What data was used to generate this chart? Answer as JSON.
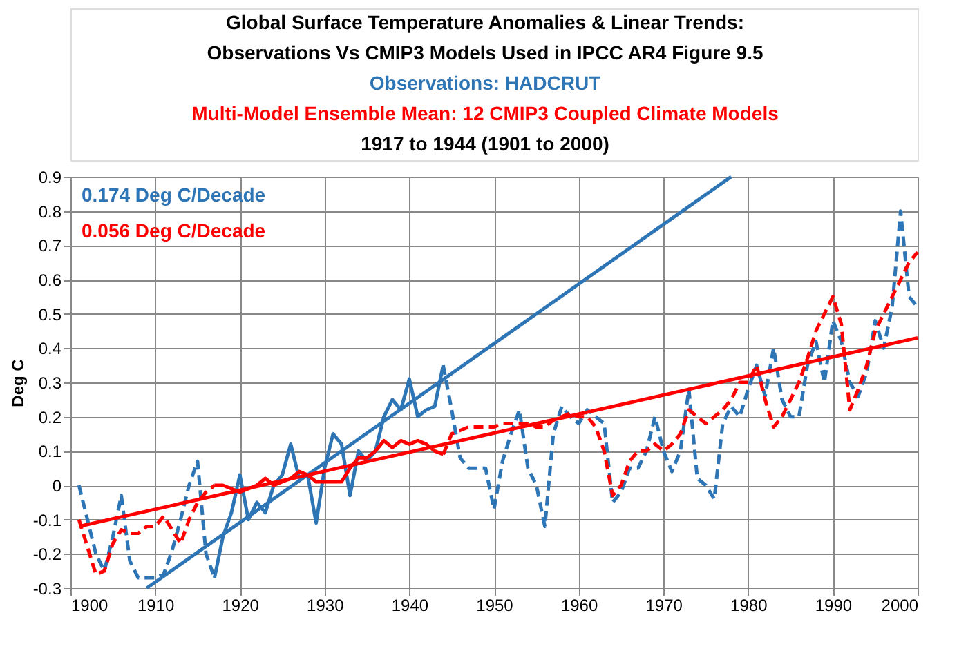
{
  "chart_data": {
    "type": "line",
    "title": [
      "Global Surface Temperature Anomalies & Linear Trends:",
      "Observations Vs CMIP3 Models Used in IPCC AR4 Figure 9.5"
    ],
    "subtitle": [
      "Observations: HADCRUT",
      "Multi-Model Ensemble Mean: 12 CMIP3 Coupled Climate Models",
      "1917 to 1944 (1901 to 2000)"
    ],
    "ylabel": "Deg C",
    "annotations": [
      "0.174 Deg C/Decade",
      "0.056 Deg C/Decade"
    ],
    "series": [
      {
        "type": "line",
        "color": "#2e75b6",
        "line_style": "dashed",
        "x": [
          1901,
          1902,
          1903,
          1904,
          1905,
          1906,
          1907,
          1908,
          1909,
          1910,
          1911,
          1912,
          1913,
          1914,
          1915,
          1916,
          1917
        ],
        "values": [
          0.0,
          -0.1,
          -0.2,
          -0.25,
          -0.15,
          -0.03,
          -0.22,
          -0.27,
          -0.27,
          -0.27,
          -0.26,
          -0.19,
          -0.1,
          0.0,
          0.07,
          -0.2,
          -0.27
        ]
      },
      {
        "type": "line",
        "color": "#2e75b6",
        "line_style": "dashed",
        "x": [
          1944,
          1945,
          1946,
          1947,
          1948,
          1949,
          1950,
          1951,
          1952,
          1953,
          1954,
          1955,
          1956,
          1957,
          1958,
          1959,
          1960,
          1961,
          1962,
          1963,
          1964,
          1965,
          1966,
          1967,
          1968,
          1969,
          1970,
          1971,
          1972,
          1973,
          1974,
          1975,
          1976,
          1977,
          1978,
          1979,
          1980,
          1981,
          1982,
          1983,
          1984,
          1985,
          1986,
          1987,
          1988,
          1989,
          1990,
          1991,
          1992,
          1993,
          1994,
          1995,
          1996,
          1997,
          1998,
          1999,
          2000
        ],
        "values": [
          0.35,
          0.22,
          0.08,
          0.05,
          0.05,
          0.05,
          -0.07,
          0.07,
          0.15,
          0.22,
          0.05,
          0.0,
          -0.12,
          0.15,
          0.23,
          0.2,
          0.18,
          0.22,
          0.2,
          0.18,
          -0.05,
          -0.02,
          0.05,
          0.05,
          0.1,
          0.2,
          0.1,
          0.04,
          0.1,
          0.28,
          0.02,
          0.0,
          -0.04,
          0.18,
          0.23,
          0.2,
          0.28,
          0.35,
          0.26,
          0.4,
          0.25,
          0.2,
          0.2,
          0.35,
          0.42,
          0.3,
          0.48,
          0.42,
          0.3,
          0.26,
          0.33,
          0.48,
          0.4,
          0.52,
          0.8,
          0.55,
          0.52
        ]
      },
      {
        "type": "line",
        "color": "#ff0000",
        "line_style": "dashed",
        "x": [
          1901,
          1902,
          1903,
          1904,
          1905,
          1906,
          1907,
          1908,
          1909,
          1910,
          1911,
          1912,
          1913,
          1914,
          1915,
          1916,
          1917
        ],
        "values": [
          -0.1,
          -0.18,
          -0.26,
          -0.25,
          -0.17,
          -0.13,
          -0.14,
          -0.14,
          -0.12,
          -0.12,
          -0.09,
          -0.13,
          -0.17,
          -0.1,
          -0.05,
          -0.02,
          0.0
        ]
      },
      {
        "type": "line",
        "color": "#ff0000",
        "line_style": "dashed",
        "x": [
          1944,
          1945,
          1946,
          1947,
          1948,
          1949,
          1950,
          1951,
          1952,
          1953,
          1954,
          1955,
          1956,
          1957,
          1958,
          1959,
          1960,
          1961,
          1962,
          1963,
          1964,
          1965,
          1966,
          1967,
          1968,
          1969,
          1970,
          1971,
          1972,
          1973,
          1974,
          1975,
          1976,
          1977,
          1978,
          1979,
          1980,
          1981,
          1982,
          1983,
          1984,
          1985,
          1986,
          1987,
          1988,
          1989,
          1990,
          1991,
          1992,
          1993,
          1994,
          1995,
          1996,
          1997,
          1998,
          1999,
          2000
        ],
        "values": [
          0.09,
          0.15,
          0.16,
          0.17,
          0.17,
          0.17,
          0.17,
          0.18,
          0.18,
          0.18,
          0.18,
          0.17,
          0.17,
          0.19,
          0.2,
          0.21,
          0.2,
          0.2,
          0.17,
          0.1,
          -0.03,
          0.0,
          0.07,
          0.1,
          0.1,
          0.12,
          0.1,
          0.12,
          0.15,
          0.22,
          0.2,
          0.18,
          0.2,
          0.22,
          0.25,
          0.3,
          0.3,
          0.35,
          0.25,
          0.17,
          0.2,
          0.25,
          0.3,
          0.37,
          0.45,
          0.5,
          0.55,
          0.47,
          0.22,
          0.28,
          0.35,
          0.45,
          0.5,
          0.55,
          0.6,
          0.65,
          0.68
        ]
      },
      {
        "type": "line",
        "color": "#2e75b6",
        "line_style": "solid",
        "x": [
          1917,
          1918,
          1919,
          1920,
          1921,
          1922,
          1923,
          1924,
          1925,
          1926,
          1927,
          1928,
          1929,
          1930,
          1931,
          1932,
          1933,
          1934,
          1935,
          1936,
          1937,
          1938,
          1939,
          1940,
          1941,
          1942,
          1943,
          1944
        ],
        "values": [
          -0.27,
          -0.15,
          -0.08,
          0.03,
          -0.1,
          -0.05,
          -0.08,
          0.0,
          0.03,
          0.12,
          0.02,
          0.03,
          -0.11,
          0.05,
          0.15,
          0.12,
          -0.03,
          0.1,
          0.07,
          0.1,
          0.2,
          0.25,
          0.22,
          0.31,
          0.2,
          0.22,
          0.23,
          0.35
        ]
      },
      {
        "type": "line",
        "color": "#ff0000",
        "line_style": "solid",
        "x": [
          1917,
          1918,
          1919,
          1920,
          1921,
          1922,
          1923,
          1924,
          1925,
          1926,
          1927,
          1928,
          1929,
          1930,
          1931,
          1932,
          1933,
          1934,
          1935,
          1936,
          1937,
          1938,
          1939,
          1940,
          1941,
          1942,
          1943,
          1944
        ],
        "values": [
          0.0,
          0.0,
          -0.01,
          -0.02,
          -0.01,
          0.0,
          0.02,
          0.0,
          0.01,
          0.02,
          0.04,
          0.03,
          0.01,
          0.01,
          0.01,
          0.01,
          0.05,
          0.08,
          0.08,
          0.1,
          0.13,
          0.11,
          0.13,
          0.12,
          0.13,
          0.12,
          0.1,
          0.09
        ]
      },
      {
        "type": "line",
        "color": "#2e75b6",
        "line_style": "solid",
        "x": [
          1909,
          1978
        ],
        "values": [
          -0.3,
          0.9
        ]
      },
      {
        "type": "line",
        "color": "#ff0000",
        "line_style": "solid",
        "x": [
          1901,
          2000
        ],
        "values": [
          -0.12,
          0.43
        ]
      }
    ],
    "xlim": [
      1900,
      2000
    ],
    "xticks": [
      1900,
      1910,
      1920,
      1930,
      1940,
      1950,
      1960,
      1970,
      1980,
      1990,
      2000
    ],
    "ylim": [
      -0.3,
      0.9
    ],
    "yticks": [
      -0.3,
      -0.2,
      -0.1,
      0,
      0.1,
      0.2,
      0.3,
      0.4,
      0.5,
      0.6,
      0.7,
      0.8,
      0.9
    ],
    "grid": true
  }
}
